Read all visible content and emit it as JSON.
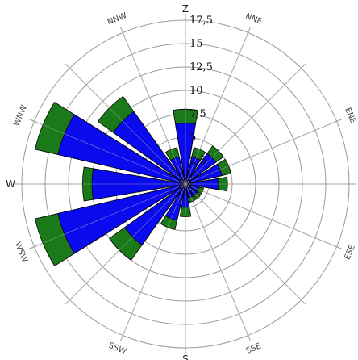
{
  "chart_data": {
    "type": "polar-bar",
    "title": "",
    "radial_ticks": [
      "2,5",
      "5",
      "7,5",
      "10",
      "12,5",
      "15",
      "17,5"
    ],
    "tick_values": [
      2.5,
      5,
      7.5,
      10,
      12.5,
      15,
      17.5
    ],
    "r_max": 17.5,
    "grid": true,
    "directions": [
      "N",
      "NNE",
      "NE",
      "ENE",
      "E",
      "ESE",
      "SE",
      "SSE",
      "S",
      "SSW",
      "SW",
      "WSW",
      "W",
      "WNW",
      "NW",
      "NNW"
    ],
    "direction_labels": {
      "N": "Z",
      "NNE": "NNE",
      "ENE": "ENE",
      "E": "I",
      "ESE": "ESE",
      "SSE": "SSE",
      "S": "S",
      "SSW": "SSW",
      "WSW": "WSW",
      "W": "W",
      "WNW": "WNW",
      "NNW": "NNW"
    },
    "series": [
      {
        "color": "#1a7a1a",
        "values": [
          8,
          4,
          5,
          5,
          4.5,
          2,
          2,
          2,
          3.5,
          5,
          10,
          16.5,
          11,
          16.5,
          11.5,
          4
        ]
      },
      {
        "color": "#0a0aee",
        "values": [
          6.5,
          3,
          4,
          4,
          3.5,
          1.5,
          1.5,
          1.5,
          2.5,
          4,
          8,
          14,
          10,
          14,
          9.5,
          3
        ]
      }
    ]
  }
}
